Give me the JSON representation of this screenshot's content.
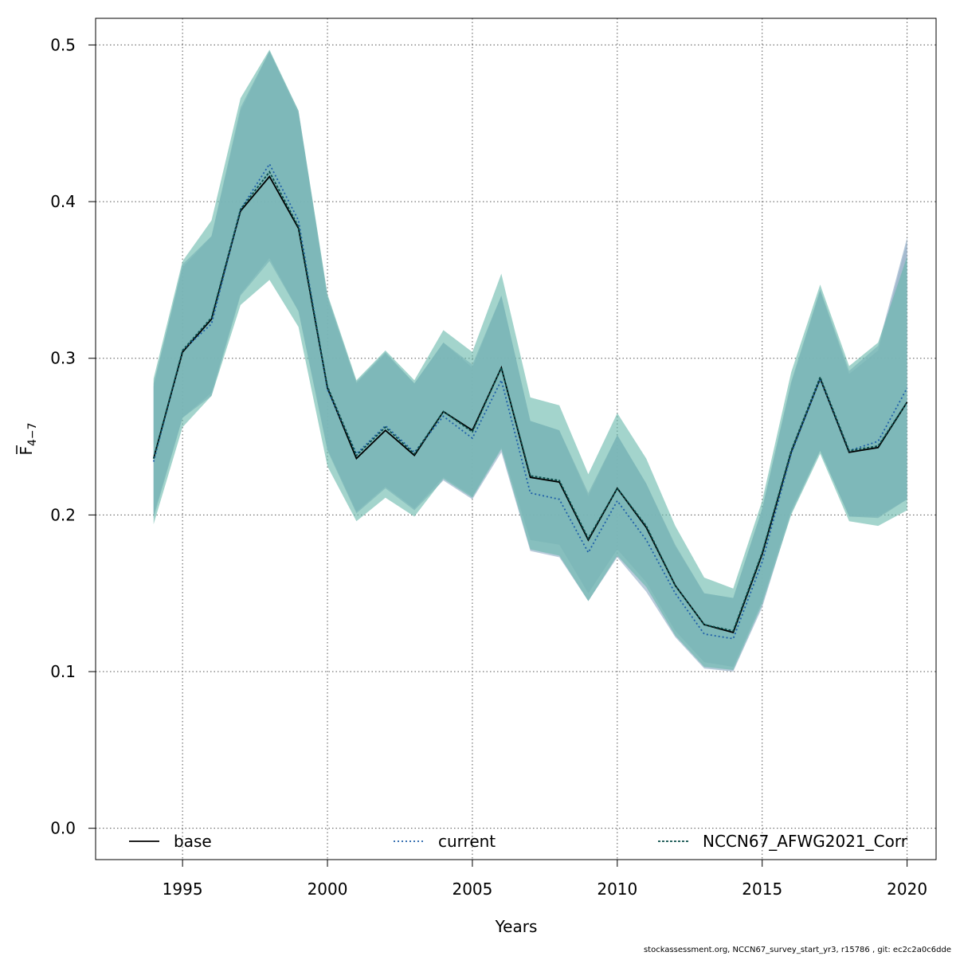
{
  "chart_data": {
    "type": "line",
    "xlabel": "Years",
    "ylabel": "F",
    "ylabel_subscript": "4−7",
    "xlim": [
      1992,
      2021
    ],
    "ylim": [
      -0.02,
      0.517
    ],
    "x_ticks": [
      1995,
      2000,
      2005,
      2010,
      2015,
      2020
    ],
    "y_ticks": [
      0.0,
      0.1,
      0.2,
      0.3,
      0.4,
      0.5
    ],
    "x_tick_labels": [
      "1995",
      "2000",
      "2005",
      "2010",
      "2015",
      "2020"
    ],
    "y_tick_labels": [
      "0.0",
      "0.1",
      "0.2",
      "0.3",
      "0.4",
      "0.5"
    ],
    "grid": true,
    "legend_position": "bottom",
    "x": [
      1994,
      1995,
      1996,
      1997,
      1998,
      1999,
      2000,
      2001,
      2002,
      2003,
      2004,
      2005,
      2006,
      2007,
      2008,
      2009,
      2010,
      2011,
      2012,
      2013,
      2014,
      2015,
      2016,
      2017,
      2018,
      2019,
      2020
    ],
    "series": [
      {
        "name": "base",
        "line_style": "solid",
        "color": "#000000",
        "band_color": "#9bafc8",
        "values": [
          0.236,
          0.304,
          0.325,
          0.394,
          0.416,
          0.383,
          0.281,
          0.236,
          0.254,
          0.238,
          0.266,
          0.254,
          0.294,
          0.224,
          0.221,
          0.184,
          0.217,
          0.192,
          0.155,
          0.13,
          0.125,
          0.175,
          0.24,
          0.287,
          0.24,
          0.243,
          0.272
        ],
        "lower": [
          0.2,
          0.262,
          0.278,
          0.341,
          0.364,
          0.33,
          0.242,
          0.202,
          0.218,
          0.204,
          0.224,
          0.212,
          0.243,
          0.184,
          0.181,
          0.15,
          0.178,
          0.157,
          0.126,
          0.106,
          0.103,
          0.145,
          0.203,
          0.241,
          0.199,
          0.198,
          0.21
        ],
        "upper": [
          0.284,
          0.358,
          0.378,
          0.458,
          0.496,
          0.456,
          0.338,
          0.284,
          0.303,
          0.284,
          0.31,
          0.294,
          0.34,
          0.26,
          0.254,
          0.214,
          0.251,
          0.22,
          0.181,
          0.15,
          0.147,
          0.204,
          0.284,
          0.343,
          0.29,
          0.305,
          0.375
        ]
      },
      {
        "name": "current",
        "line_style": "dotted",
        "color": "#1f5fa8",
        "band_color": "#9bb5cc",
        "values": [
          0.234,
          0.305,
          0.322,
          0.395,
          0.424,
          0.388,
          0.28,
          0.239,
          0.257,
          0.24,
          0.263,
          0.249,
          0.286,
          0.214,
          0.21,
          0.176,
          0.209,
          0.184,
          0.15,
          0.124,
          0.121,
          0.17,
          0.239,
          0.287,
          0.241,
          0.247,
          0.281
        ],
        "lower": [
          0.198,
          0.262,
          0.276,
          0.34,
          0.362,
          0.33,
          0.241,
          0.201,
          0.217,
          0.203,
          0.222,
          0.21,
          0.24,
          0.177,
          0.173,
          0.145,
          0.173,
          0.151,
          0.122,
          0.102,
          0.1,
          0.141,
          0.201,
          0.241,
          0.199,
          0.199,
          0.21
        ],
        "upper": [
          0.282,
          0.36,
          0.378,
          0.46,
          0.496,
          0.458,
          0.34,
          0.285,
          0.304,
          0.284,
          0.31,
          0.296,
          0.34,
          0.26,
          0.254,
          0.212,
          0.251,
          0.22,
          0.18,
          0.15,
          0.147,
          0.204,
          0.285,
          0.344,
          0.292,
          0.308,
          0.377
        ]
      },
      {
        "name": "NCCN67_AFWG2021_Corr",
        "line_style": "dashed",
        "color": "#0b4d4a",
        "band_color": "#66b8aa",
        "values": [
          0.236,
          0.305,
          0.326,
          0.395,
          0.419,
          0.384,
          0.282,
          0.238,
          0.256,
          0.239,
          0.266,
          0.253,
          0.294,
          0.225,
          0.222,
          0.185,
          0.217,
          0.193,
          0.155,
          0.13,
          0.126,
          0.176,
          0.241,
          0.288,
          0.241,
          0.244,
          0.272
        ],
        "lower": [
          0.194,
          0.256,
          0.276,
          0.334,
          0.35,
          0.32,
          0.231,
          0.196,
          0.211,
          0.199,
          0.223,
          0.211,
          0.242,
          0.178,
          0.174,
          0.145,
          0.174,
          0.154,
          0.123,
          0.103,
          0.101,
          0.143,
          0.2,
          0.239,
          0.196,
          0.193,
          0.203
        ],
        "upper": [
          0.287,
          0.362,
          0.388,
          0.466,
          0.497,
          0.458,
          0.341,
          0.286,
          0.305,
          0.286,
          0.318,
          0.304,
          0.354,
          0.275,
          0.27,
          0.226,
          0.265,
          0.236,
          0.193,
          0.16,
          0.153,
          0.209,
          0.291,
          0.347,
          0.295,
          0.31,
          0.365
        ]
      }
    ]
  },
  "footer": {
    "text": "stockassessment.org, NCCN67_survey_start_yr3, r15786 , git: ec2c2a0c6dde"
  },
  "colors": {
    "grid": "#555555",
    "axis": "#000000"
  }
}
